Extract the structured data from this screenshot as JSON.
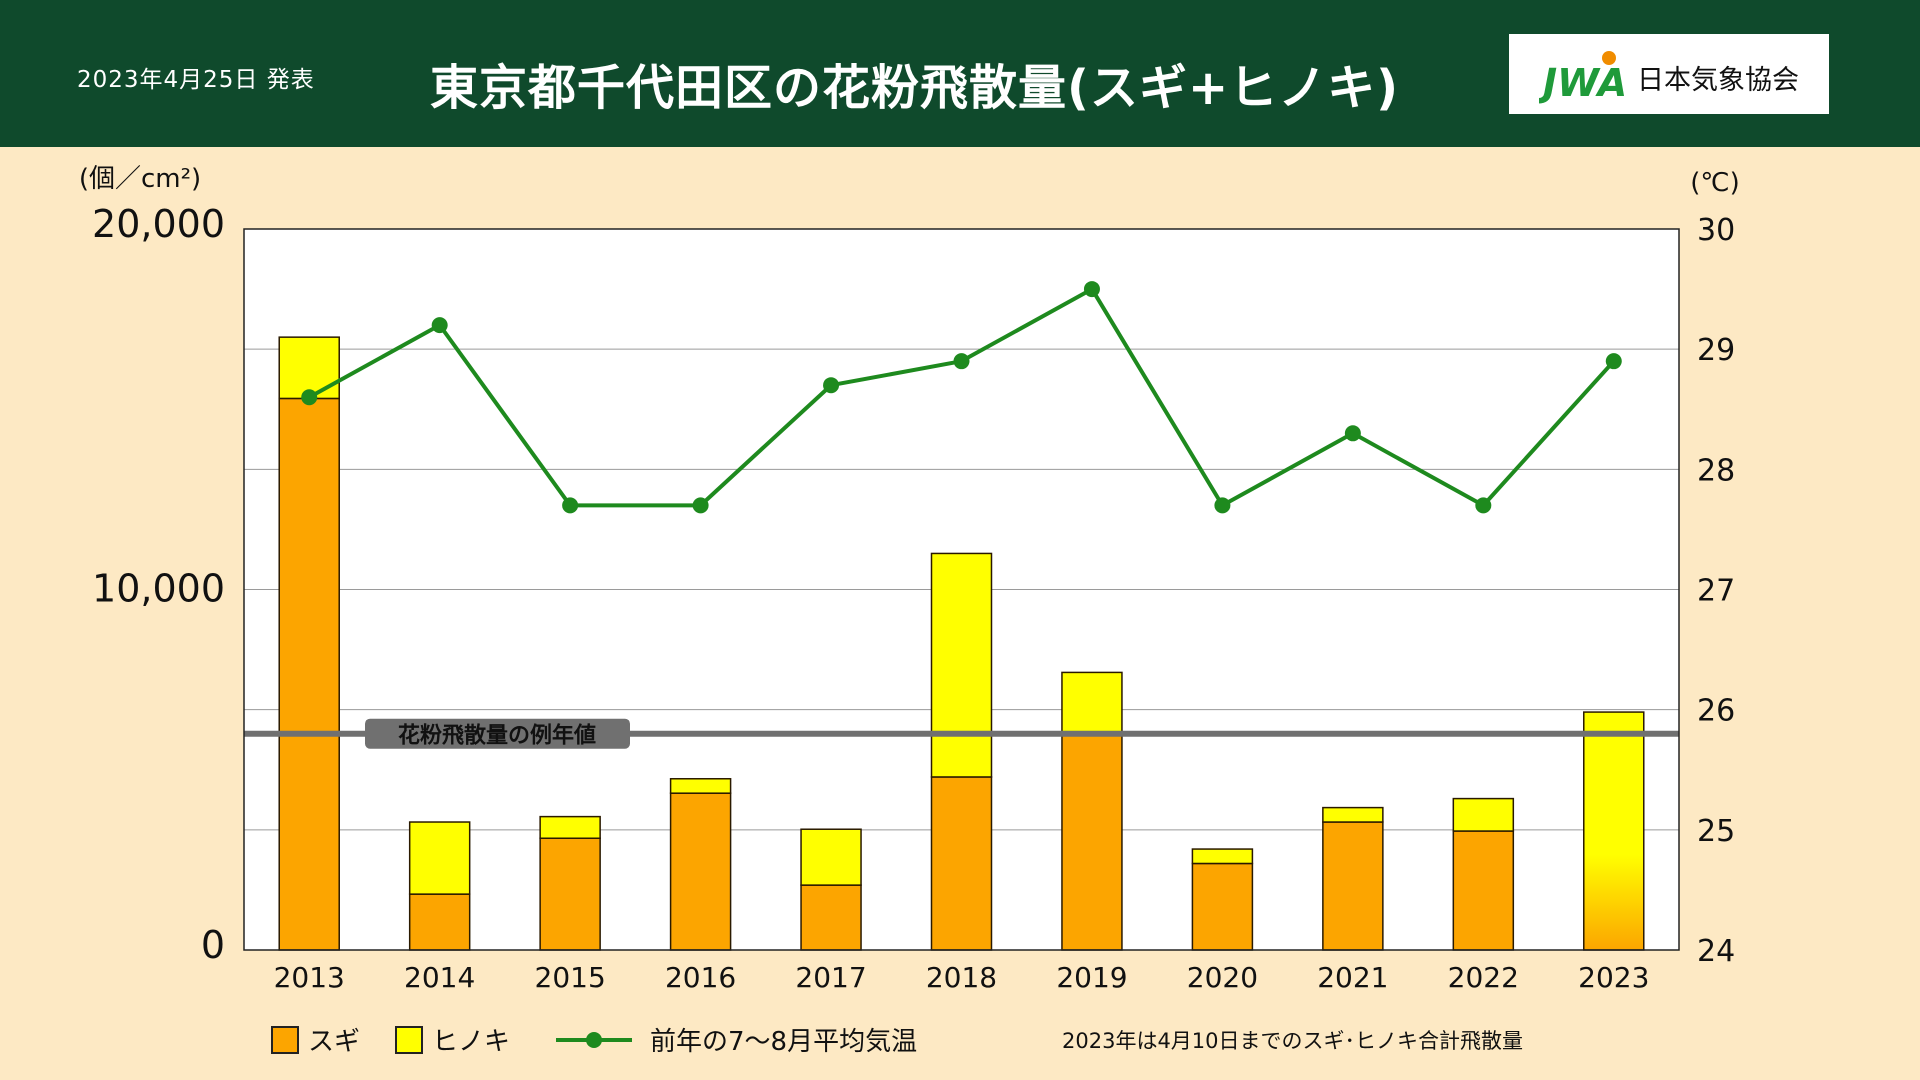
{
  "header": {
    "date": "2023年4月25日  発表",
    "title": "東京都千代田区の花粉飛散量(スギ+ヒノキ)",
    "logo_mark": "JWA",
    "logo_text": "日本気象協会"
  },
  "colors": {
    "header_bg": "#0f4a2c",
    "page_bg": "#fde9c4",
    "sugi": "#fca500",
    "hinoki": "#ffff00",
    "temp_line": "#1e8a1e",
    "normal_line": "#707070"
  },
  "chart_data": {
    "type": "bar",
    "stacked": true,
    "categories": [
      "2013",
      "2014",
      "2015",
      "2016",
      "2017",
      "2018",
      "2019",
      "2020",
      "2021",
      "2022",
      "2023"
    ],
    "series": [
      {
        "name": "スギ",
        "axis": "left",
        "values": [
          15300,
          1550,
          3100,
          4350,
          1800,
          4800,
          6000,
          2400,
          3550,
          3300,
          null
        ]
      },
      {
        "name": "ヒノキ",
        "axis": "left",
        "values": [
          1700,
          2000,
          600,
          400,
          1550,
          6200,
          1700,
          400,
          400,
          900,
          null
        ]
      },
      {
        "name": "スギ･ヒノキ合計",
        "axis": "left",
        "values": [
          null,
          null,
          null,
          null,
          null,
          null,
          null,
          null,
          null,
          null,
          6600
        ]
      }
    ],
    "line_series": {
      "name": "前年の7～8月平均気温",
      "axis": "right",
      "values": [
        28.6,
        29.2,
        27.7,
        27.7,
        28.7,
        28.9,
        29.5,
        27.7,
        28.3,
        27.7,
        28.9
      ]
    },
    "left_axis": {
      "unit": "(個／cm²)",
      "range": [
        0,
        20000
      ],
      "tick_labels": [
        "0",
        "10,000",
        "20,000"
      ]
    },
    "right_axis": {
      "unit": "(℃)",
      "range": [
        24,
        30
      ],
      "tick_labels": [
        "24",
        "25",
        "26",
        "27",
        "28",
        "29",
        "30"
      ]
    },
    "normal_value": 6000,
    "normal_label": "花粉飛散量の例年値",
    "legend": {
      "sugi": "スギ",
      "hinoki": "ヒノキ",
      "temp": "前年の7～8月平均気温"
    },
    "note": "2023年は4月10日までのスギ･ヒノキ合計飛散量"
  }
}
